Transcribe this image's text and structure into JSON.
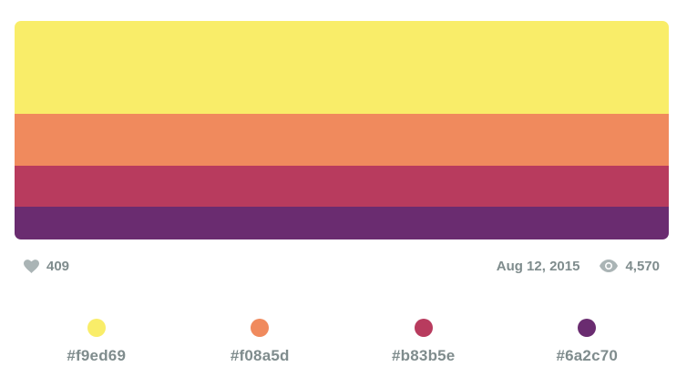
{
  "palette": {
    "colors": [
      {
        "hex": "#f9ed69",
        "label": "#f9ed69"
      },
      {
        "hex": "#f08a5d",
        "label": "#f08a5d"
      },
      {
        "hex": "#b83b5e",
        "label": "#b83b5e"
      },
      {
        "hex": "#6a2c70",
        "label": "#6a2c70"
      }
    ]
  },
  "meta": {
    "likes": "409",
    "date": "Aug 12, 2015",
    "views": "4,570",
    "icon_color": "#aab4b5",
    "text_color": "#7f8c8d"
  },
  "icons": {
    "likes": "heart-icon",
    "views": "eye-icon"
  }
}
